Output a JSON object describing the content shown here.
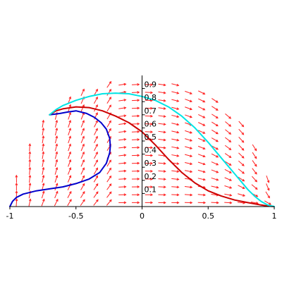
{
  "chart_data": {
    "type": "line",
    "title": "",
    "xlabel": "",
    "ylabel": "",
    "xlim": [
      -1,
      1
    ],
    "ylim": [
      0,
      1
    ],
    "x_ticks": [
      {
        "value": -1,
        "label": "-1"
      },
      {
        "value": -0.5,
        "label": "-0.5"
      },
      {
        "value": 0,
        "label": "0"
      },
      {
        "value": 0.5,
        "label": "0.5"
      },
      {
        "value": 1,
        "label": "1"
      }
    ],
    "y_ticks": [
      {
        "value": 0.1,
        "label": "0.1"
      },
      {
        "value": 0.2,
        "label": "0.2"
      },
      {
        "value": 0.3,
        "label": "0.3"
      },
      {
        "value": 0.4,
        "label": "0.4"
      },
      {
        "value": 0.5,
        "label": "0.5"
      },
      {
        "value": 0.6,
        "label": "0.6"
      },
      {
        "value": 0.7,
        "label": "0.7"
      },
      {
        "value": 0.8,
        "label": "0.8"
      },
      {
        "value": 0.9,
        "label": "0.9"
      }
    ],
    "grid": false,
    "direction_field": {
      "color": "#ff2020",
      "region": "upper unit half-disk"
    },
    "series": [
      {
        "color": "#0000cc",
        "x": [
          -1.0,
          -0.98,
          -0.95,
          -0.9,
          -0.8,
          -0.7,
          -0.6,
          -0.5,
          -0.4,
          -0.32,
          -0.27,
          -0.245,
          -0.24,
          -0.245,
          -0.27,
          -0.31,
          -0.36,
          -0.42,
          -0.5,
          -0.57,
          -0.62,
          -0.66,
          -0.7
        ],
        "y": [
          0.0,
          0.04,
          0.07,
          0.095,
          0.12,
          0.135,
          0.15,
          0.175,
          0.21,
          0.26,
          0.33,
          0.41,
          0.46,
          0.52,
          0.59,
          0.64,
          0.68,
          0.71,
          0.73,
          0.72,
          0.71,
          0.705,
          0.7
        ]
      },
      {
        "color": "#cc0000",
        "x": [
          -0.7,
          -0.65,
          -0.6,
          -0.5,
          -0.4,
          -0.3,
          -0.2,
          -0.1,
          0.0,
          0.1,
          0.2,
          0.3,
          0.4,
          0.5,
          0.6,
          0.7,
          0.8,
          0.9,
          0.95,
          1.0
        ],
        "y": [
          0.7,
          0.73,
          0.745,
          0.76,
          0.755,
          0.73,
          0.69,
          0.64,
          0.57,
          0.47,
          0.36,
          0.26,
          0.18,
          0.12,
          0.08,
          0.05,
          0.03,
          0.012,
          0.005,
          0.0
        ]
      },
      {
        "color": "#00e5e5",
        "x": [
          -0.7,
          -0.65,
          -0.6,
          -0.5,
          -0.4,
          -0.3,
          -0.2,
          -0.1,
          0.0,
          0.1,
          0.2,
          0.3,
          0.4,
          0.5,
          0.6,
          0.7,
          0.8,
          0.85,
          0.9,
          0.95,
          1.0
        ],
        "y": [
          0.7,
          0.74,
          0.77,
          0.81,
          0.84,
          0.86,
          0.865,
          0.86,
          0.84,
          0.81,
          0.76,
          0.69,
          0.6,
          0.49,
          0.37,
          0.25,
          0.13,
          0.08,
          0.04,
          0.012,
          0.0
        ]
      }
    ]
  }
}
